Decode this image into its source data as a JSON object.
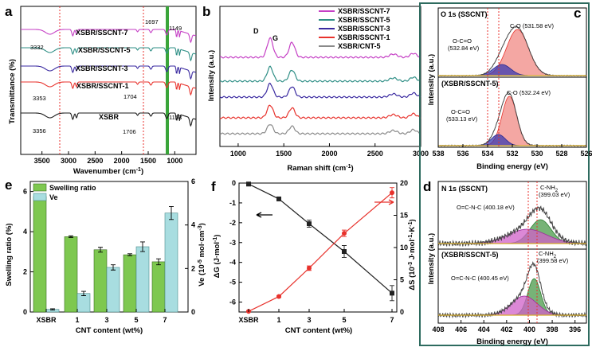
{
  "panels": {
    "a": {
      "letter": "a",
      "xlabel": "Wavenumber (cm",
      "xlabel_sup": "-1",
      "xlabel_end": ")",
      "ylabel": "Transmittance (%)",
      "series": [
        "XSBR/SSCNT-7",
        "XSBR/SSCNT-5",
        "XSBR/SSCNT-3",
        "XSBR/SSCNT-1",
        "XSBR"
      ],
      "peaks": [
        "3332",
        "1697",
        "1149",
        "3353",
        "1704",
        "3356",
        "1706",
        "1153"
      ],
      "xticks": [
        "3500",
        "3000",
        "2500",
        "2000",
        "1500",
        "1000"
      ]
    },
    "b": {
      "letter": "b",
      "xlabel": "Raman shift (cm",
      "xlabel_sup": "-1",
      "xlabel_end": ")",
      "ylabel": "Intensity (a.u.)",
      "bands": [
        "D",
        "G"
      ],
      "legend": [
        "XSBR/SSCNT-7",
        "XSBR/SSCNT-5",
        "XSBR/SSCNT-3",
        "XSBR/SSCNT-1",
        "XSBR/CNT-5"
      ],
      "xticks": [
        "1000",
        "1500",
        "2000",
        "2500",
        "3000"
      ]
    },
    "c": {
      "letter": "c",
      "title_top": "O 1s (SSCNT)",
      "title_bot": "(XSBR/SSCNT-5)",
      "ylabel": "Intensity (a.u.)",
      "xlabel": "Binding energy (eV)",
      "peaks_top": [
        "C-O (531.58 eV)",
        "O-C=O",
        "(532.84 eV)"
      ],
      "peaks_bot": [
        "C-O (532.24 eV)",
        "O-C=O",
        "(533.13 eV)"
      ],
      "xticks": [
        "538",
        "536",
        "534",
        "532",
        "530",
        "528",
        "526"
      ]
    },
    "d": {
      "letter": "d",
      "title_top": "N 1s (SSCNT)",
      "title_bot": "(XSBR/SSCNT-5)",
      "ylabel": "Intensity (a.u.)",
      "xlabel": "Binding energy (eV)",
      "peaks_top": [
        "C-NH",
        "(399.03 eV)",
        "O=C-N-C (400.18 eV)"
      ],
      "peaks_bot": [
        "C-NH",
        "(399.58 eV)",
        "O=C-N-C (400.45 eV)"
      ],
      "sub2": "2",
      "xticks": [
        "408",
        "406",
        "404",
        "402",
        "400",
        "398",
        "396"
      ]
    },
    "e": {
      "letter": "e",
      "xlabel": "CNT content (wt%)",
      "ylabel": "Swelling ratio (%)",
      "ylabel2": "Ve (10",
      "ylabel2_sup": "-5",
      "ylabel2_end": " mol·cm",
      "ylabel2_sup2": "-3",
      "ylabel2_end2": ")",
      "legend": [
        "Swelling ratio",
        "Ve"
      ],
      "yticks_left": [
        "0",
        "2",
        "4",
        "6"
      ],
      "yticks_right": [
        "0",
        "2",
        "4",
        "6"
      ]
    },
    "f": {
      "letter": "f",
      "xlabel": "CNT content (wt%)",
      "ylabel": "ΔG (J·mol",
      "ylabel_sup": "-1",
      "ylabel_end": ")",
      "ylabel2": "ΔS (10",
      "ylabel2_sup": "-3",
      "ylabel2_end": " J·mol",
      "ylabel2_sup2": "-1",
      "ylabel2_mid": "·K",
      "ylabel2_sup3": "-1",
      "ylabel2_end2": ")",
      "yticks_left": [
        "0",
        "-1",
        "-2",
        "-3",
        "-4",
        "-5",
        "-6"
      ],
      "yticks_right": [
        "0",
        "5",
        "10",
        "15",
        "20"
      ]
    }
  },
  "colors": {
    "s7": "#c53fc5",
    "s5": "#2f8f86",
    "s3": "#3a2aa0",
    "s1": "#e8322c",
    "s0": "#1a1a1a",
    "cnt5": "#8a8a8a",
    "bar1": "#7ec850",
    "bar2": "#a8dde0",
    "line1": "#222222",
    "line2": "#e8322c",
    "green_band": "#3aa53a"
  },
  "chart_data": [
    {
      "type": "line",
      "title": "",
      "xlabel": "Wavenumber (cm-1)",
      "ylabel": "Transmittance (%)",
      "xlim": [
        3900,
        600
      ],
      "series": [
        {
          "name": "XSBR/SSCNT-7"
        },
        {
          "name": "XSBR/SSCNT-5"
        },
        {
          "name": "XSBR/SSCNT-3"
        },
        {
          "name": "XSBR/SSCNT-1"
        },
        {
          "name": "XSBR"
        }
      ],
      "annotations": [
        3332,
        1697,
        1149,
        3353,
        1704,
        3356,
        1706,
        1153
      ]
    },
    {
      "type": "line",
      "xlabel": "Raman shift (cm-1)",
      "ylabel": "Intensity (a.u.)",
      "xlim": [
        800,
        3000
      ],
      "series": [
        {
          "name": "XSBR/SSCNT-7"
        },
        {
          "name": "XSBR/SSCNT-5"
        },
        {
          "name": "XSBR/SSCNT-3"
        },
        {
          "name": "XSBR/SSCNT-1"
        },
        {
          "name": "XSBR/CNT-5"
        }
      ],
      "bands": {
        "D": 1350,
        "G": 1590
      }
    },
    {
      "type": "line",
      "title": "O 1s",
      "xlabel": "Binding energy (eV)",
      "xlim": [
        538,
        526
      ],
      "peaks": {
        "SSCNT": {
          "C-O": 531.58,
          "O-C=O": 532.84
        },
        "XSBR/SSCNT-5": {
          "C-O": 532.24,
          "O-C=O": 533.13
        }
      }
    },
    {
      "type": "line",
      "title": "N 1s",
      "xlabel": "Binding energy (eV)",
      "xlim": [
        408,
        395
      ],
      "peaks": {
        "SSCNT": {
          "C-NH2": 399.03,
          "O=C-N-C": 400.18
        },
        "XSBR/SSCNT-5": {
          "C-NH2": 399.58,
          "O=C-N-C": 400.45
        }
      }
    },
    {
      "type": "bar",
      "xlabel": "CNT content (wt%)",
      "categories": [
        "XSBR",
        "1",
        "3",
        "5",
        "7"
      ],
      "series": [
        {
          "name": "Swelling ratio",
          "axis": "left",
          "values": [
            5.75,
            3.75,
            3.1,
            2.85,
            2.5
          ],
          "errors": [
            0.1,
            0.04,
            0.12,
            0.05,
            0.15
          ]
        },
        {
          "name": "Ve",
          "axis": "right",
          "values": [
            0.12,
            0.85,
            2.05,
            3.0,
            4.55
          ],
          "errors": [
            0.03,
            0.1,
            0.12,
            0.22,
            0.3
          ]
        }
      ],
      "ylim": [
        0,
        6.5
      ],
      "ylim2": [
        0,
        6
      ]
    },
    {
      "type": "line",
      "xlabel": "CNT content (wt%)",
      "categories": [
        "XSBR",
        "1",
        "3",
        "5",
        "7"
      ],
      "series": [
        {
          "name": "ΔG",
          "axis": "left",
          "values": [
            -0.05,
            -0.8,
            -2.05,
            -3.45,
            -5.55
          ],
          "errors": [
            0.02,
            0.06,
            0.18,
            0.3,
            0.38
          ]
        },
        {
          "name": "ΔS",
          "axis": "right",
          "values": [
            0.1,
            2.4,
            6.8,
            12.2,
            18.5
          ],
          "errors": [
            0.05,
            0.15,
            0.35,
            0.5,
            0.8
          ]
        }
      ],
      "ylim": [
        -6.5,
        0
      ],
      "ylim2": [
        0,
        20
      ]
    }
  ]
}
